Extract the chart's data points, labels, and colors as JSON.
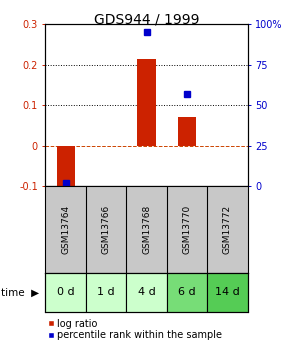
{
  "title": "GDS944 / 1999",
  "samples": [
    "GSM13764",
    "GSM13766",
    "GSM13768",
    "GSM13770",
    "GSM13772"
  ],
  "time_labels": [
    "0 d",
    "1 d",
    "4 d",
    "6 d",
    "14 d"
  ],
  "log_ratio": [
    -0.12,
    0.0,
    0.215,
    0.07,
    0.0
  ],
  "percentile_rank": [
    2.0,
    null,
    95.0,
    57.0,
    null
  ],
  "ylim_left": [
    -0.1,
    0.3
  ],
  "ylim_right": [
    0,
    100
  ],
  "bar_color": "#cc2200",
  "dot_color": "#0000cc",
  "zero_line_color": "#cc4400",
  "bg_color": "#ffffff",
  "gsm_bg": "#c8c8c8",
  "time_bg_colors": [
    "#ccffcc",
    "#ccffcc",
    "#ccffcc",
    "#77dd77",
    "#55cc55"
  ],
  "title_fontsize": 10,
  "tick_fontsize": 7,
  "legend_fontsize": 7,
  "gsm_fontsize": 6.5,
  "time_fontsize": 8
}
